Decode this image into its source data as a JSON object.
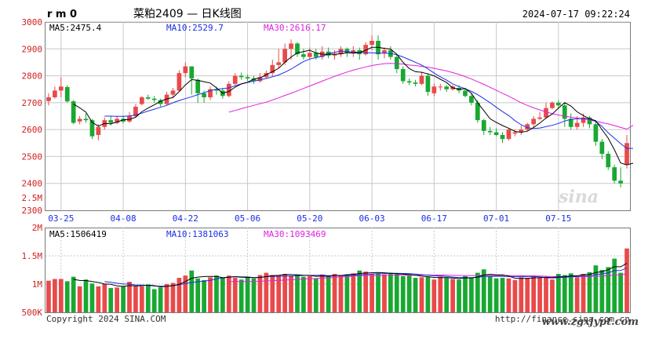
{
  "header": {
    "symbol": "r m 0",
    "name": "菜粕2409 — 日K线图",
    "datetime": "2024-07-17 09:22:24"
  },
  "price_panel": {
    "ma5_label": "MA5:2475.4",
    "ma10_label": "MA10:2529.7",
    "ma30_label": "MA30:2616.17",
    "y_ticks": [
      "3000",
      "2900",
      "2800",
      "2700",
      "2600",
      "2500",
      "2400",
      "2.5M",
      "2300"
    ],
    "x_labels": [
      "03-25",
      "04-08",
      "04-22",
      "05-06",
      "05-20",
      "06-03",
      "06-17",
      "07-01",
      "07-15"
    ],
    "watermark": "sina"
  },
  "volume_panel": {
    "ma5_label": "MA5:1506419",
    "ma10_label": "MA10:1381063",
    "ma30_label": "MA30:1093469",
    "y_ticks": [
      "2M",
      "1.5M",
      "1M",
      "500K"
    ]
  },
  "footer": {
    "copyright": "Copyright 2024 SINA.COM",
    "url": "http://finance.sina.com.cn",
    "site_watermark": "www.zgxjypt.com"
  },
  "colors": {
    "up": "#e84a4a",
    "down": "#19a832",
    "ma5": "#000000",
    "ma10": "#1a2ee8",
    "ma30": "#e020e0",
    "grid": "#c8c8c8",
    "axis_text": "#1a2ee8",
    "ylabel_text": "#d02020"
  },
  "chart_data": {
    "type": "candlestick",
    "y_range": [
      2300,
      3000
    ],
    "volume_range": [
      500000,
      2000000
    ],
    "x_labels": [
      "03-25",
      "04-08",
      "04-22",
      "05-06",
      "05-20",
      "06-03",
      "06-17",
      "07-01",
      "07-15"
    ],
    "x_label_index": [
      2,
      12,
      22,
      32,
      42,
      52,
      62,
      72,
      82
    ],
    "candles": [
      [
        2706,
        2720,
        2690,
        2735,
        1060000
      ],
      [
        2720,
        2745,
        2715,
        2760,
        1090000
      ],
      [
        2745,
        2760,
        2720,
        2795,
        1090000
      ],
      [
        2758,
        2705,
        2700,
        2765,
        1050000
      ],
      [
        2705,
        2625,
        2620,
        2710,
        1130000
      ],
      [
        2630,
        2640,
        2620,
        2650,
        960000
      ],
      [
        2640,
        2635,
        2625,
        2660,
        1080000
      ],
      [
        2635,
        2575,
        2565,
        2640,
        1010000
      ],
      [
        2580,
        2610,
        2560,
        2620,
        960000
      ],
      [
        2610,
        2635,
        2600,
        2645,
        1000000
      ],
      [
        2635,
        2625,
        2615,
        2650,
        930000
      ],
      [
        2625,
        2640,
        2620,
        2650,
        940000
      ],
      [
        2640,
        2630,
        2622,
        2652,
        960000
      ],
      [
        2630,
        2650,
        2625,
        2665,
        1040000
      ],
      [
        2650,
        2685,
        2645,
        2695,
        960000
      ],
      [
        2695,
        2720,
        2690,
        2725,
        960000
      ],
      [
        2720,
        2715,
        2710,
        2730,
        990000
      ],
      [
        2715,
        2710,
        2700,
        2725,
        910000
      ],
      [
        2710,
        2695,
        2685,
        2715,
        940000
      ],
      [
        2695,
        2730,
        2690,
        2740,
        1000000
      ],
      [
        2730,
        2745,
        2720,
        2755,
        1020000
      ],
      [
        2745,
        2810,
        2740,
        2820,
        1110000
      ],
      [
        2810,
        2835,
        2795,
        2850,
        1150000
      ],
      [
        2835,
        2790,
        2730,
        2830,
        1240000
      ],
      [
        2785,
        2735,
        2700,
        2790,
        1100000
      ],
      [
        2735,
        2720,
        2700,
        2745,
        1070000
      ],
      [
        2720,
        2750,
        2710,
        2760,
        1120000
      ],
      [
        2750,
        2745,
        2730,
        2760,
        1150000
      ],
      [
        2745,
        2725,
        2715,
        2755,
        1120000
      ],
      [
        2725,
        2770,
        2720,
        2780,
        1150000
      ],
      [
        2770,
        2800,
        2765,
        2810,
        1110000
      ],
      [
        2800,
        2795,
        2785,
        2812,
        1080000
      ],
      [
        2795,
        2790,
        2780,
        2805,
        1130000
      ],
      [
        2790,
        2780,
        2770,
        2800,
        1100000
      ],
      [
        2780,
        2795,
        2775,
        2810,
        1160000
      ],
      [
        2795,
        2810,
        2790,
        2820,
        1200000
      ],
      [
        2810,
        2840,
        2800,
        2860,
        1160000
      ],
      [
        2840,
        2850,
        2830,
        2900,
        1150000
      ],
      [
        2850,
        2900,
        2840,
        2920,
        1180000
      ],
      [
        2900,
        2920,
        2860,
        2935,
        1150000
      ],
      [
        2920,
        2880,
        2870,
        2925,
        1170000
      ],
      [
        2880,
        2870,
        2860,
        2900,
        1130000
      ],
      [
        2870,
        2885,
        2860,
        2905,
        1140000
      ],
      [
        2885,
        2870,
        2860,
        2900,
        1100000
      ],
      [
        2870,
        2890,
        2860,
        2910,
        1170000
      ],
      [
        2890,
        2875,
        2865,
        2905,
        1150000
      ],
      [
        2875,
        2880,
        2860,
        2895,
        1180000
      ],
      [
        2880,
        2900,
        2870,
        2910,
        1160000
      ],
      [
        2900,
        2885,
        2870,
        2905,
        1170000
      ],
      [
        2885,
        2895,
        2870,
        2910,
        1190000
      ],
      [
        2895,
        2880,
        2860,
        2905,
        1240000
      ],
      [
        2880,
        2915,
        2875,
        2925,
        1220000
      ],
      [
        2915,
        2930,
        2895,
        2950,
        1180000
      ],
      [
        2930,
        2880,
        2860,
        2950,
        1190000
      ],
      [
        2885,
        2895,
        2865,
        2905,
        1170000
      ],
      [
        2895,
        2870,
        2860,
        2910,
        1200000
      ],
      [
        2870,
        2825,
        2810,
        2880,
        1180000
      ],
      [
        2825,
        2780,
        2770,
        2835,
        1140000
      ],
      [
        2780,
        2775,
        2765,
        2790,
        1150000
      ],
      [
        2775,
        2770,
        2760,
        2785,
        1110000
      ],
      [
        2770,
        2800,
        2765,
        2815,
        1120000
      ],
      [
        2800,
        2740,
        2725,
        2810,
        1130000
      ],
      [
        2735,
        2760,
        2725,
        2770,
        1080000
      ],
      [
        2758,
        2760,
        2745,
        2770,
        1130000
      ],
      [
        2760,
        2750,
        2740,
        2765,
        1110000
      ],
      [
        2750,
        2760,
        2745,
        2765,
        1090000
      ],
      [
        2755,
        2745,
        2735,
        2765,
        1080000
      ],
      [
        2745,
        2725,
        2720,
        2755,
        1140000
      ],
      [
        2725,
        2700,
        2690,
        2735,
        1120000
      ],
      [
        2700,
        2635,
        2625,
        2710,
        1200000
      ],
      [
        2635,
        2595,
        2580,
        2640,
        1260000
      ],
      [
        2595,
        2590,
        2580,
        2610,
        1140000
      ],
      [
        2590,
        2580,
        2575,
        2605,
        1100000
      ],
      [
        2580,
        2565,
        2550,
        2590,
        1110000
      ],
      [
        2565,
        2600,
        2560,
        2605,
        1100000
      ],
      [
        2585,
        2590,
        2575,
        2600,
        1070000
      ],
      [
        2590,
        2600,
        2580,
        2615,
        1120000
      ],
      [
        2600,
        2620,
        2595,
        2625,
        1110000
      ],
      [
        2620,
        2640,
        2610,
        2650,
        1150000
      ],
      [
        2640,
        2645,
        2635,
        2665,
        1110000
      ],
      [
        2645,
        2680,
        2640,
        2700,
        1120000
      ],
      [
        2680,
        2700,
        2675,
        2705,
        1080000
      ],
      [
        2700,
        2690,
        2680,
        2710,
        1180000
      ],
      [
        2690,
        2640,
        2610,
        2700,
        1160000
      ],
      [
        2640,
        2610,
        2600,
        2660,
        1190000
      ],
      [
        2610,
        2625,
        2600,
        2650,
        1120000
      ],
      [
        2625,
        2645,
        2610,
        2660,
        1180000
      ],
      [
        2645,
        2620,
        2605,
        2650,
        1210000
      ],
      [
        2620,
        2555,
        2540,
        2630,
        1330000
      ],
      [
        2555,
        2510,
        2490,
        2565,
        1250000
      ],
      [
        2510,
        2460,
        2450,
        2520,
        1300000
      ],
      [
        2460,
        2410,
        2400,
        2470,
        1450000
      ],
      [
        2410,
        2400,
        2385,
        2460,
        1200000
      ],
      [
        2470,
        2550,
        2455,
        2580,
        1630000
      ]
    ],
    "ma5": [
      null,
      null,
      null,
      null,
      2695,
      2681,
      2665,
      2627,
      2613,
      2623,
      2621,
      2628,
      2636,
      2638,
      2646,
      2666,
      2680,
      2692,
      2705,
      2714,
      2719,
      2741,
      2766,
      2786,
      2783,
      2778,
      2773,
      2755,
      2735,
      2742,
      2758,
      2770,
      2776,
      2788,
      2792,
      2804,
      2815,
      2828,
      2850,
      2870,
      2885,
      2890,
      2895,
      2885,
      2880,
      2880,
      2880,
      2882,
      2886,
      2884,
      2886,
      2895,
      2906,
      2906,
      2902,
      2899,
      2880,
      2850,
      2827,
      2815,
      2813,
      2807,
      2800,
      2787,
      2775,
      2755,
      2750,
      2752,
      2735,
      2700,
      2670,
      2640,
      2627,
      2615,
      2605,
      2593,
      2590,
      2594,
      2608,
      2624,
      2643,
      2658,
      2680,
      2700,
      2688,
      2666,
      2652,
      2640,
      2633,
      2600,
      2568,
      2525,
      2476,
      2469,
      2475
    ],
    "ma10": [
      null,
      null,
      null,
      null,
      null,
      null,
      null,
      null,
      null,
      2650,
      2650,
      2649,
      2649,
      2651,
      2654,
      2661,
      2669,
      2676,
      2683,
      2690,
      2700,
      2708,
      2715,
      2722,
      2730,
      2737,
      2745,
      2750,
      2752,
      2755,
      2763,
      2770,
      2775,
      2780,
      2785,
      2790,
      2796,
      2803,
      2813,
      2825,
      2839,
      2853,
      2862,
      2868,
      2872,
      2882,
      2887,
      2892,
      2890,
      2888,
      2887,
      2886,
      2885,
      2884,
      2884,
      2883,
      2878,
      2870,
      2860,
      2850,
      2840,
      2826,
      2810,
      2796,
      2784,
      2770,
      2760,
      2752,
      2742,
      2730,
      2715,
      2700,
      2683,
      2667,
      2652,
      2633,
      2618,
      2607,
      2604,
      2606,
      2611,
      2616,
      2623,
      2632,
      2638,
      2640,
      2641,
      2640,
      2630,
      2612,
      2588,
      2568,
      2548,
      2530,
      2530
    ],
    "ma30": [
      null,
      null,
      null,
      null,
      null,
      null,
      null,
      null,
      null,
      null,
      null,
      null,
      null,
      null,
      null,
      null,
      null,
      null,
      null,
      null,
      null,
      null,
      null,
      null,
      null,
      null,
      null,
      null,
      null,
      2665,
      2671,
      2678,
      2684,
      2690,
      2696,
      2702,
      2710,
      2718,
      2727,
      2735,
      2744,
      2753,
      2762,
      2771,
      2780,
      2789,
      2798,
      2806,
      2814,
      2821,
      2827,
      2833,
      2838,
      2842,
      2845,
      2846,
      2845,
      2843,
      2840,
      2838,
      2835,
      2832,
      2828,
      2823,
      2818,
      2812,
      2805,
      2797,
      2788,
      2778,
      2768,
      2757,
      2746,
      2735,
      2724,
      2712,
      2700,
      2690,
      2681,
      2673,
      2666,
      2659,
      2654,
      2650,
      2646,
      2643,
      2640,
      2636,
      2631,
      2626,
      2621,
      2615,
      2608,
      2602,
      2616
    ]
  }
}
